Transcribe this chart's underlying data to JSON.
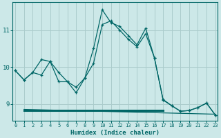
{
  "xlabel": "Humidex (Indice chaleur)",
  "bg_color": "#cce8e8",
  "grid_color": "#aacccc",
  "line_color": "#006666",
  "x_ticks": [
    0,
    1,
    2,
    3,
    4,
    5,
    6,
    7,
    8,
    9,
    10,
    11,
    12,
    13,
    14,
    15,
    16,
    17,
    18,
    19,
    20,
    21,
    22,
    23
  ],
  "y_ticks": [
    9,
    10,
    11
  ],
  "ylim": [
    8.55,
    11.75
  ],
  "xlim": [
    -0.3,
    23.3
  ],
  "series": [
    {
      "x": [
        0,
        1,
        2,
        3,
        4,
        5,
        6,
        7,
        8,
        9,
        10,
        11,
        12,
        13,
        14,
        15,
        16,
        17,
        18,
        19,
        20,
        21,
        22,
        23
      ],
      "y": [
        9.9,
        9.65,
        9.85,
        10.2,
        10.15,
        9.85,
        9.6,
        9.45,
        9.7,
        10.5,
        11.55,
        11.2,
        11.1,
        10.85,
        10.6,
        11.05,
        10.25,
        9.1,
        8.95,
        8.8,
        8.82,
        8.9,
        9.02,
        8.7
      ]
    },
    {
      "x": [
        0,
        1,
        2,
        3,
        4,
        5,
        6,
        7,
        8,
        9,
        10,
        11,
        12,
        13,
        14,
        15,
        16,
        17,
        18,
        19,
        20,
        21,
        22,
        23
      ],
      "y": [
        9.9,
        9.65,
        9.85,
        9.78,
        10.15,
        9.6,
        9.6,
        9.3,
        9.7,
        10.1,
        11.15,
        11.25,
        11.0,
        10.75,
        10.55,
        10.9,
        10.25,
        9.12,
        8.95,
        8.8,
        8.82,
        8.9,
        9.02,
        8.7
      ]
    },
    {
      "x": [
        1,
        23
      ],
      "y": [
        8.85,
        8.72
      ]
    },
    {
      "x": [
        1,
        17
      ],
      "y": [
        8.83,
        8.83
      ]
    }
  ]
}
